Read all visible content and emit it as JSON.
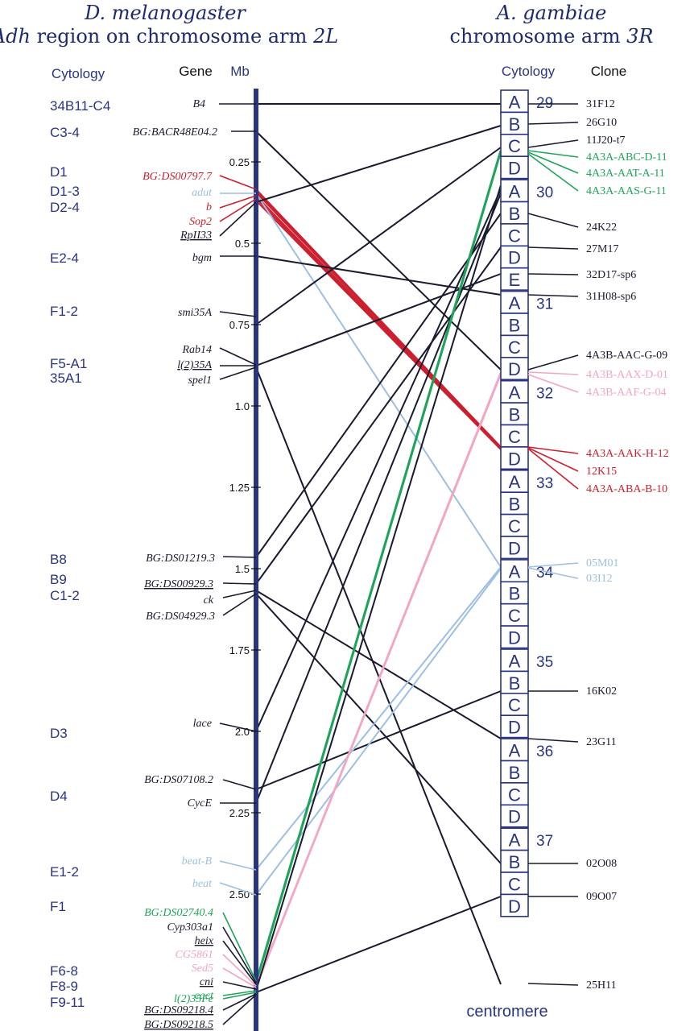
{
  "colors": {
    "black": "#1a1a2e",
    "red": "#cc1f2f",
    "blue": "#9dbfe2",
    "green": "#1fa45a",
    "pink": "#f2a6c4",
    "navy": "#2a3580"
  },
  "titles": {
    "left_line1": "D. melanogaster",
    "left_line2_a": "Adh",
    "left_line2_b": " region on chromosome arm ",
    "left_line2_c": "2L",
    "right_line1": "A. gambiae",
    "right_line2_a": "chromosome arm ",
    "right_line2_b": "3R"
  },
  "headers": {
    "cytology_left": "Cytology",
    "gene": "Gene",
    "mb": "Mb",
    "cytology_right": "Cytology",
    "clone": "Clone"
  },
  "mb_ticks": [
    "0.25",
    "0.5",
    "0.75",
    "1.0",
    "1.25",
    "1.5",
    "1.75",
    "2.0",
    "2.25",
    "2.50"
  ],
  "cytology_left": [
    "34B11-C4",
    "C3-4",
    "D1",
    "D1-3",
    "D2-4",
    "E2-4",
    "F1-2",
    "F5-A1",
    "35A1",
    "B8",
    "B9",
    "C1-2",
    "D3",
    "D4",
    "E1-2",
    "F1",
    "F6-8",
    "F8-9",
    "F9-11"
  ],
  "genes": [
    {
      "label": "B4",
      "color": "black",
      "underline": false
    },
    {
      "label": "BG:BACR48E04.2",
      "color": "black",
      "underline": false
    },
    {
      "label": "BG:DS00797.7",
      "color": "red",
      "underline": false
    },
    {
      "label": "adut",
      "color": "blue",
      "underline": false
    },
    {
      "label": "b",
      "color": "red",
      "underline": false
    },
    {
      "label": "Sop2",
      "color": "red",
      "underline": false
    },
    {
      "label": "RpII33",
      "color": "black",
      "underline": true
    },
    {
      "label": "bgm",
      "color": "black",
      "underline": false
    },
    {
      "label": "smi35A",
      "color": "black",
      "underline": false
    },
    {
      "label": "Rab14",
      "color": "black",
      "underline": false
    },
    {
      "label": "l(2)35A",
      "color": "black",
      "underline": true
    },
    {
      "label": "spel1",
      "color": "black",
      "underline": false
    },
    {
      "label": "BG:DS01219.3",
      "color": "black",
      "underline": false
    },
    {
      "label": "BG:DS00929.3",
      "color": "black",
      "underline": true
    },
    {
      "label": "ck",
      "color": "black",
      "underline": false
    },
    {
      "label": "BG:DS04929.3",
      "color": "black",
      "underline": false
    },
    {
      "label": "lace",
      "color": "black",
      "underline": false
    },
    {
      "label": "BG:DS07108.2",
      "color": "black",
      "underline": false
    },
    {
      "label": "CycE",
      "color": "black",
      "underline": false
    },
    {
      "label": "beat-B",
      "color": "blue",
      "underline": false
    },
    {
      "label": "beat",
      "color": "blue",
      "underline": false
    },
    {
      "label": "BG:DS02740.4",
      "color": "green",
      "underline": false
    },
    {
      "label": "Cyp303a1",
      "color": "black",
      "underline": false
    },
    {
      "label": "heix",
      "color": "black",
      "underline": true
    },
    {
      "label": "CG5861",
      "color": "pink",
      "underline": false
    },
    {
      "label": "Sed5",
      "color": "pink",
      "underline": false
    },
    {
      "label": "cni",
      "color": "black",
      "underline": true
    },
    {
      "label": "cact",
      "color": "green",
      "underline": false
    },
    {
      "label": "l(2)35Fe",
      "color": "green",
      "underline": false
    },
    {
      "label": "BG:DS09218.4",
      "color": "black",
      "underline": true
    },
    {
      "label": "BG:DS09218.5",
      "color": "black",
      "underline": true
    }
  ],
  "divisions": [
    {
      "num": "29",
      "bands": [
        "A",
        "B",
        "C",
        "D"
      ]
    },
    {
      "num": "30",
      "bands": [
        "A",
        "B",
        "C",
        "D",
        "E"
      ]
    },
    {
      "num": "31",
      "bands": [
        "A",
        "B",
        "C",
        "D"
      ]
    },
    {
      "num": "32",
      "bands": [
        "A",
        "B",
        "C",
        "D"
      ]
    },
    {
      "num": "33",
      "bands": [
        "A",
        "B",
        "C",
        "D"
      ]
    },
    {
      "num": "34",
      "bands": [
        "A",
        "B",
        "C",
        "D"
      ]
    },
    {
      "num": "35",
      "bands": [
        "A",
        "B",
        "C",
        "D"
      ]
    },
    {
      "num": "36",
      "bands": [
        "A",
        "B",
        "C",
        "D"
      ]
    },
    {
      "num": "37",
      "bands": [
        "A",
        "B",
        "C",
        "D"
      ]
    }
  ],
  "clones": [
    {
      "label": "31F12",
      "color": "black"
    },
    {
      "label": "26G10",
      "color": "black"
    },
    {
      "label": "11J20-t7",
      "color": "black"
    },
    {
      "label": "4A3A-ABC-D-11",
      "color": "green"
    },
    {
      "label": "4A3A-AAT-A-11",
      "color": "green"
    },
    {
      "label": "4A3A-AAS-G-11",
      "color": "green"
    },
    {
      "label": "24K22",
      "color": "black"
    },
    {
      "label": "27M17",
      "color": "black"
    },
    {
      "label": "32D17-sp6",
      "color": "black"
    },
    {
      "label": "31H08-sp6",
      "color": "black"
    },
    {
      "label": "4A3B-AAC-G-09",
      "color": "black"
    },
    {
      "label": "4A3B-AAX-D-01",
      "color": "pink"
    },
    {
      "label": "4A3B-AAF-G-04",
      "color": "pink"
    },
    {
      "label": "4A3A-AAK-H-12",
      "color": "red"
    },
    {
      "label": "12K15",
      "color": "red"
    },
    {
      "label": "4A3A-ABA-B-10",
      "color": "red"
    },
    {
      "label": "05M01",
      "color": "blue"
    },
    {
      "label": "03I12",
      "color": "blue"
    },
    {
      "label": "16K02",
      "color": "black"
    },
    {
      "label": "23G11",
      "color": "black"
    },
    {
      "label": "02O08",
      "color": "black"
    },
    {
      "label": "09O07",
      "color": "black"
    },
    {
      "label": "25H11",
      "color": "black"
    }
  ],
  "centromere": "centromere"
}
